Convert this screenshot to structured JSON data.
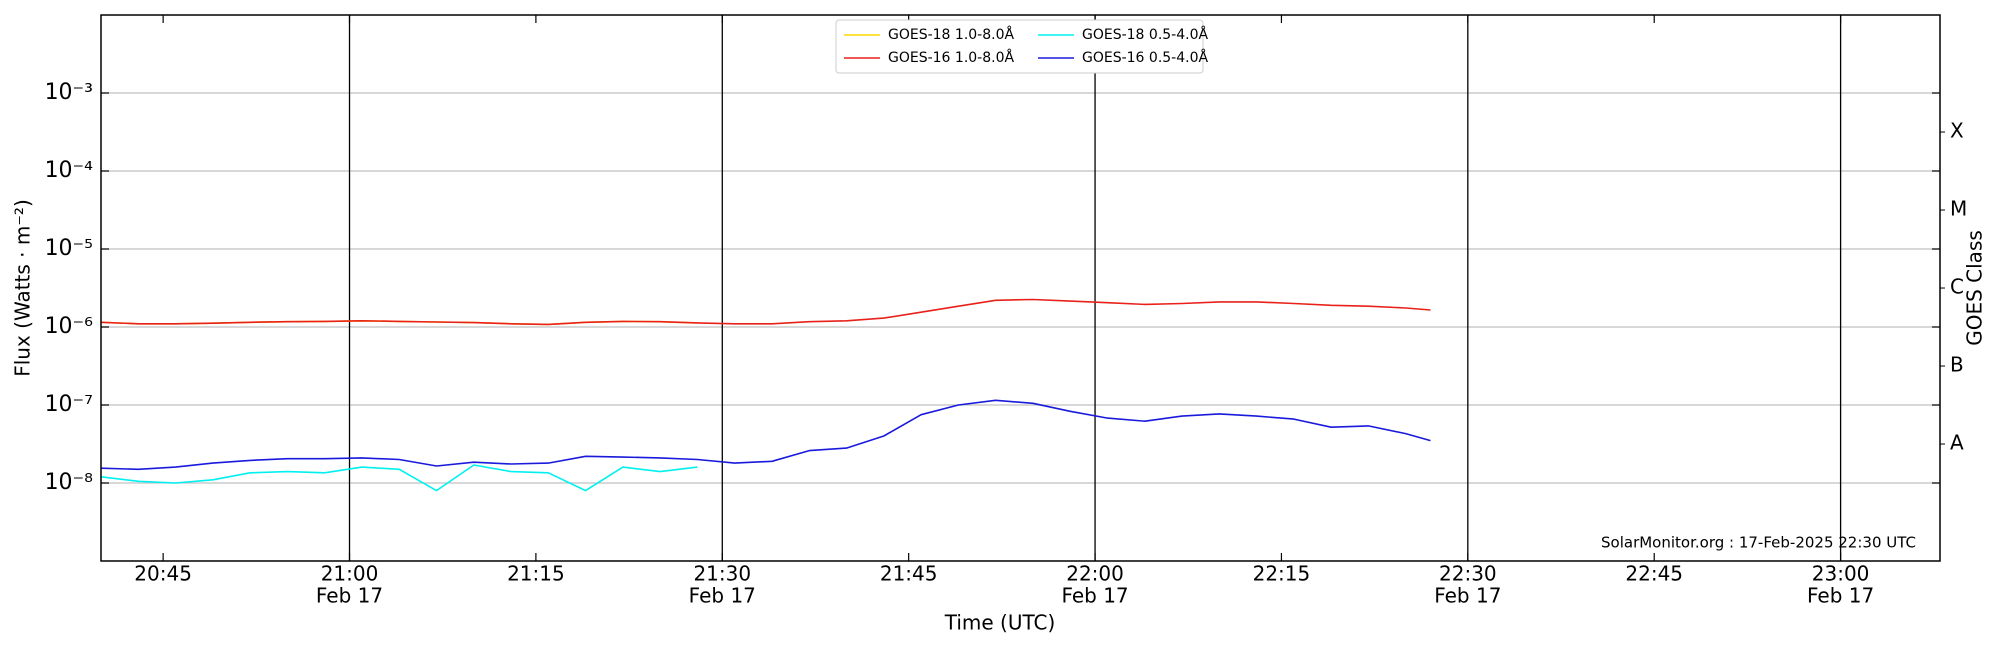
{
  "chart_data": {
    "type": "line",
    "x_label": "Time (UTC)",
    "y_label": "Flux (Watts · m⁻²)",
    "y2_label": "GOES Class",
    "footer": "SolarMonitor.org : 17-Feb-2025 22:30 UTC",
    "log_y": true,
    "grid": true,
    "legend": "top-center",
    "xlim": [
      "20:40",
      "23:08"
    ],
    "xticks": [
      "20:45",
      "21:00",
      "21:15",
      "21:30",
      "21:45",
      "22:00",
      "22:15",
      "22:30",
      "22:45",
      "23:00"
    ],
    "xtick_dates": [
      null,
      "Feb 17",
      null,
      "Feb 17",
      null,
      "Feb 17",
      null,
      "Feb 17",
      null,
      "Feb 17"
    ],
    "ylim": [
      1e-09,
      0.01
    ],
    "yticks": [
      {
        "value": 1e-08,
        "label": "10⁻⁸"
      },
      {
        "value": 1e-07,
        "label": "10⁻⁷"
      },
      {
        "value": 1e-06,
        "label": "10⁻⁶"
      },
      {
        "value": 1e-05,
        "label": "10⁻⁵"
      },
      {
        "value": 0.0001,
        "label": "10⁻⁴"
      },
      {
        "value": 0.001,
        "label": "10⁻³"
      }
    ],
    "y2lim": [
      1e-09,
      0.01
    ],
    "y2ticks": [
      {
        "value": 3.16e-08,
        "label": "A"
      },
      {
        "value": 3.16e-07,
        "label": "B"
      },
      {
        "value": 3.16e-06,
        "label": "C"
      },
      {
        "value": 3.16e-05,
        "label": "M"
      },
      {
        "value": 0.000316,
        "label": "X"
      }
    ],
    "x": [
      "20:40",
      "20:43",
      "20:46",
      "20:49",
      "20:52",
      "20:55",
      "20:58",
      "21:01",
      "21:04",
      "21:07",
      "21:10",
      "21:13",
      "21:16",
      "21:19",
      "21:22",
      "21:25",
      "21:28",
      "21:31",
      "21:34",
      "21:37",
      "21:40",
      "21:43",
      "21:46",
      "21:49",
      "21:52",
      "21:55",
      "21:58",
      "22:01",
      "22:04",
      "22:07",
      "22:10",
      "22:13",
      "22:16",
      "22:19",
      "22:22",
      "22:25",
      "22:27"
    ],
    "series": [
      {
        "name": "GOES-18 1.0-8.0Å",
        "color": "#ffd700",
        "values": [
          1.15e-06,
          1.1e-06,
          1.1e-06,
          1.12e-06,
          1.15e-06,
          1.17e-06,
          1.18e-06,
          1.2e-06,
          1.18e-06,
          1.16e-06,
          1.14e-06,
          1.1e-06,
          1.08e-06,
          1.15e-06,
          1.18e-06,
          1.17e-06,
          1.13e-06,
          null,
          null,
          null,
          null,
          null,
          null,
          null,
          null,
          null,
          null,
          null,
          null,
          null,
          null,
          null,
          null,
          null,
          null,
          null,
          null
        ]
      },
      {
        "name": "GOES-16 1.0-8.0Å",
        "color": "#e8221b",
        "values": [
          1.15e-06,
          1.1e-06,
          1.1e-06,
          1.12e-06,
          1.15e-06,
          1.17e-06,
          1.18e-06,
          1.2e-06,
          1.18e-06,
          1.16e-06,
          1.14e-06,
          1.1e-06,
          1.08e-06,
          1.15e-06,
          1.18e-06,
          1.17e-06,
          1.13e-06,
          1.1e-06,
          1.1e-06,
          1.17e-06,
          1.2e-06,
          1.3e-06,
          1.55e-06,
          1.85e-06,
          2.2e-06,
          2.25e-06,
          2.15e-06,
          2.05e-06,
          1.95e-06,
          2e-06,
          2.1e-06,
          2.1e-06,
          2e-06,
          1.9e-06,
          1.85e-06,
          1.75e-06,
          1.65e-06
        ]
      },
      {
        "name": "GOES-18 0.5-4.0Å",
        "color": "#00f0f0",
        "values": [
          1.2e-08,
          1.05e-08,
          1e-08,
          1.1e-08,
          1.35e-08,
          1.4e-08,
          1.35e-08,
          1.6e-08,
          1.5e-08,
          8e-09,
          1.7e-08,
          1.4e-08,
          1.35e-08,
          8e-09,
          1.6e-08,
          1.4e-08,
          1.6e-08,
          null,
          null,
          null,
          null,
          null,
          null,
          null,
          null,
          null,
          null,
          null,
          null,
          null,
          null,
          null,
          null,
          null,
          null,
          null,
          null
        ]
      },
      {
        "name": "GOES-16 0.5-4.0Å",
        "color": "#1a1adc",
        "values": [
          1.55e-08,
          1.5e-08,
          1.6e-08,
          1.8e-08,
          1.95e-08,
          2.05e-08,
          2.05e-08,
          2.1e-08,
          2e-08,
          1.65e-08,
          1.85e-08,
          1.75e-08,
          1.8e-08,
          2.2e-08,
          2.15e-08,
          2.1e-08,
          2e-08,
          1.8e-08,
          1.9e-08,
          2.6e-08,
          2.8e-08,
          4e-08,
          7.5e-08,
          1e-07,
          1.15e-07,
          1.05e-07,
          8.3e-08,
          6.8e-08,
          6.2e-08,
          7.2e-08,
          7.7e-08,
          7.2e-08,
          6.6e-08,
          5.2e-08,
          5.4e-08,
          4.3e-08,
          3.5e-08
        ]
      }
    ]
  }
}
